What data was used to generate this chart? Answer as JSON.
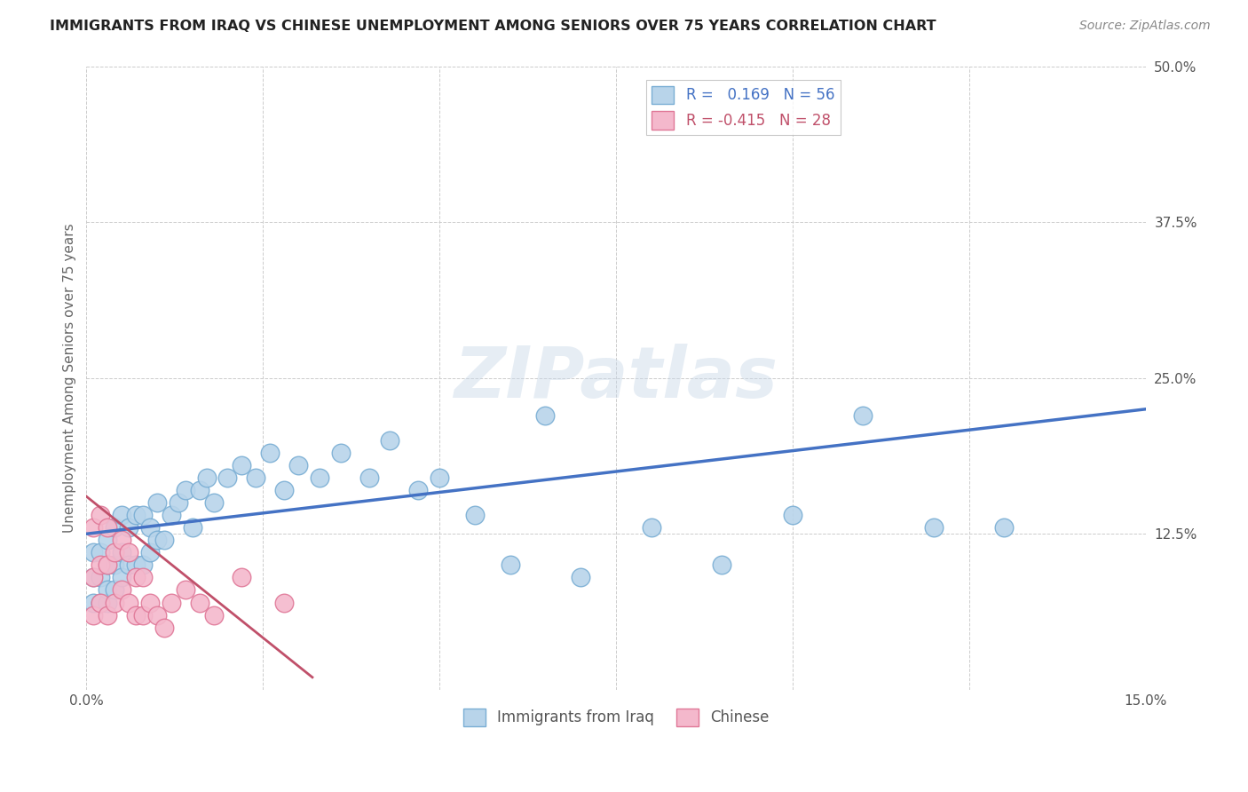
{
  "title": "IMMIGRANTS FROM IRAQ VS CHINESE UNEMPLOYMENT AMONG SENIORS OVER 75 YEARS CORRELATION CHART",
  "source_text": "Source: ZipAtlas.com",
  "ylabel": "Unemployment Among Seniors over 75 years",
  "xlim": [
    0.0,
    0.15
  ],
  "ylim": [
    0.0,
    0.5
  ],
  "xticks": [
    0.0,
    0.025,
    0.05,
    0.075,
    0.1,
    0.125,
    0.15
  ],
  "xticklabels": [
    "0.0%",
    "",
    "",
    "",
    "",
    "",
    "15.0%"
  ],
  "yticks": [
    0.0,
    0.125,
    0.25,
    0.375,
    0.5
  ],
  "yticklabels_right": [
    "",
    "12.5%",
    "25.0%",
    "37.5%",
    "50.0%"
  ],
  "r_iraq": 0.169,
  "n_iraq": 56,
  "r_chinese": -0.415,
  "n_chinese": 28,
  "iraq_color": "#b8d4ea",
  "iraq_edge_color": "#7aaed4",
  "chinese_color": "#f4b8cc",
  "chinese_edge_color": "#e07898",
  "iraq_line_color": "#4472c4",
  "chinese_line_color": "#c0506a",
  "watermark": "ZIPatlas",
  "iraq_line_x0": 0.0,
  "iraq_line_y0": 0.125,
  "iraq_line_x1": 0.15,
  "iraq_line_y1": 0.225,
  "chinese_line_x0": 0.0,
  "chinese_line_y0": 0.155,
  "chinese_line_x1": 0.032,
  "chinese_line_y1": 0.01,
  "iraq_x": [
    0.001,
    0.001,
    0.001,
    0.002,
    0.002,
    0.002,
    0.003,
    0.003,
    0.003,
    0.003,
    0.004,
    0.004,
    0.004,
    0.005,
    0.005,
    0.005,
    0.006,
    0.006,
    0.007,
    0.007,
    0.008,
    0.008,
    0.009,
    0.009,
    0.01,
    0.01,
    0.011,
    0.012,
    0.013,
    0.014,
    0.015,
    0.016,
    0.017,
    0.018,
    0.02,
    0.022,
    0.024,
    0.026,
    0.028,
    0.03,
    0.033,
    0.036,
    0.04,
    0.043,
    0.047,
    0.05,
    0.055,
    0.06,
    0.065,
    0.07,
    0.08,
    0.09,
    0.1,
    0.11,
    0.12,
    0.13
  ],
  "iraq_y": [
    0.07,
    0.09,
    0.11,
    0.07,
    0.09,
    0.11,
    0.07,
    0.08,
    0.1,
    0.12,
    0.08,
    0.1,
    0.13,
    0.09,
    0.11,
    0.14,
    0.1,
    0.13,
    0.1,
    0.14,
    0.1,
    0.14,
    0.11,
    0.13,
    0.12,
    0.15,
    0.12,
    0.14,
    0.15,
    0.16,
    0.13,
    0.16,
    0.17,
    0.15,
    0.17,
    0.18,
    0.17,
    0.19,
    0.16,
    0.18,
    0.17,
    0.19,
    0.17,
    0.2,
    0.16,
    0.17,
    0.14,
    0.1,
    0.22,
    0.09,
    0.13,
    0.1,
    0.14,
    0.22,
    0.13,
    0.13
  ],
  "chinese_x": [
    0.001,
    0.001,
    0.001,
    0.002,
    0.002,
    0.002,
    0.003,
    0.003,
    0.003,
    0.004,
    0.004,
    0.005,
    0.005,
    0.006,
    0.006,
    0.007,
    0.007,
    0.008,
    0.008,
    0.009,
    0.01,
    0.011,
    0.012,
    0.014,
    0.016,
    0.018,
    0.022,
    0.028
  ],
  "chinese_y": [
    0.06,
    0.09,
    0.13,
    0.07,
    0.1,
    0.14,
    0.06,
    0.1,
    0.13,
    0.07,
    0.11,
    0.08,
    0.12,
    0.07,
    0.11,
    0.06,
    0.09,
    0.06,
    0.09,
    0.07,
    0.06,
    0.05,
    0.07,
    0.08,
    0.07,
    0.06,
    0.09,
    0.07
  ]
}
